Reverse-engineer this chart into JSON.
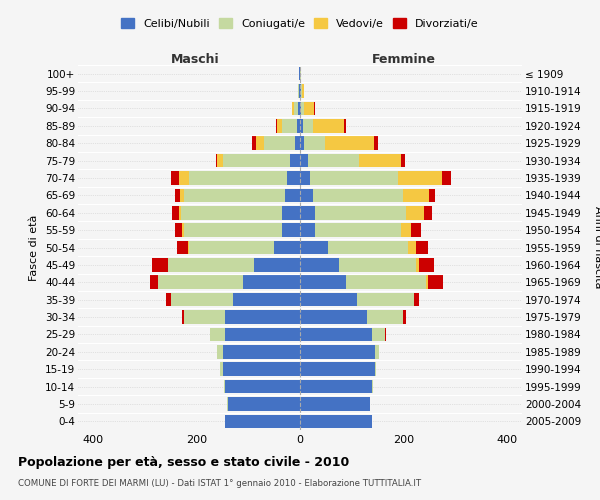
{
  "age_groups": [
    "0-4",
    "5-9",
    "10-14",
    "15-19",
    "20-24",
    "25-29",
    "30-34",
    "35-39",
    "40-44",
    "45-49",
    "50-54",
    "55-59",
    "60-64",
    "65-69",
    "70-74",
    "75-79",
    "80-84",
    "85-89",
    "90-94",
    "95-99",
    "100+"
  ],
  "birth_years": [
    "2005-2009",
    "2000-2004",
    "1995-1999",
    "1990-1994",
    "1985-1989",
    "1980-1984",
    "1975-1979",
    "1970-1974",
    "1965-1969",
    "1960-1964",
    "1955-1959",
    "1950-1954",
    "1945-1949",
    "1940-1944",
    "1935-1939",
    "1930-1934",
    "1925-1929",
    "1920-1924",
    "1915-1919",
    "1910-1914",
    "≤ 1909"
  ],
  "male_celibi": [
    145,
    140,
    145,
    150,
    150,
    145,
    145,
    130,
    110,
    90,
    50,
    35,
    35,
    30,
    25,
    20,
    10,
    5,
    3,
    1,
    1
  ],
  "male_coniugati": [
    0,
    1,
    2,
    5,
    10,
    30,
    80,
    120,
    165,
    165,
    165,
    190,
    195,
    195,
    190,
    130,
    60,
    30,
    8,
    2,
    1
  ],
  "male_vedovi": [
    0,
    0,
    0,
    0,
    0,
    0,
    0,
    0,
    0,
    0,
    2,
    3,
    5,
    8,
    20,
    10,
    15,
    10,
    5,
    1,
    0
  ],
  "male_divorziati": [
    0,
    0,
    0,
    0,
    0,
    0,
    3,
    10,
    15,
    32,
    22,
    15,
    12,
    10,
    15,
    2,
    8,
    2,
    0,
    0,
    0
  ],
  "female_celibi": [
    140,
    135,
    140,
    145,
    145,
    140,
    130,
    110,
    90,
    75,
    55,
    30,
    30,
    25,
    20,
    15,
    8,
    5,
    2,
    1,
    0
  ],
  "female_coniugati": [
    0,
    0,
    1,
    3,
    8,
    25,
    70,
    110,
    155,
    150,
    155,
    165,
    175,
    175,
    170,
    100,
    40,
    20,
    5,
    2,
    1
  ],
  "female_vedovi": [
    0,
    0,
    0,
    0,
    0,
    0,
    0,
    0,
    2,
    5,
    15,
    20,
    35,
    50,
    85,
    80,
    95,
    60,
    20,
    5,
    1
  ],
  "female_divorziati": [
    0,
    0,
    0,
    0,
    0,
    2,
    5,
    10,
    30,
    30,
    22,
    20,
    15,
    12,
    18,
    8,
    8,
    5,
    2,
    0,
    0
  ],
  "color_celibi": "#4472c4",
  "color_coniugati": "#c5d9a0",
  "color_vedovi": "#f5c842",
  "color_divorziati": "#cc0000",
  "title": "Popolazione per età, sesso e stato civile - 2010",
  "subtitle": "COMUNE DI FORTE DEI MARMI (LU) - Dati ISTAT 1° gennaio 2010 - Elaborazione TUTTITALIA.IT",
  "xlabel_left": "Maschi",
  "xlabel_right": "Femmine",
  "ylabel_left": "Fasce di età",
  "ylabel_right": "Anni di nascita",
  "xlim": 430,
  "bg_color": "#f5f5f5",
  "grid_color": "#cccccc"
}
